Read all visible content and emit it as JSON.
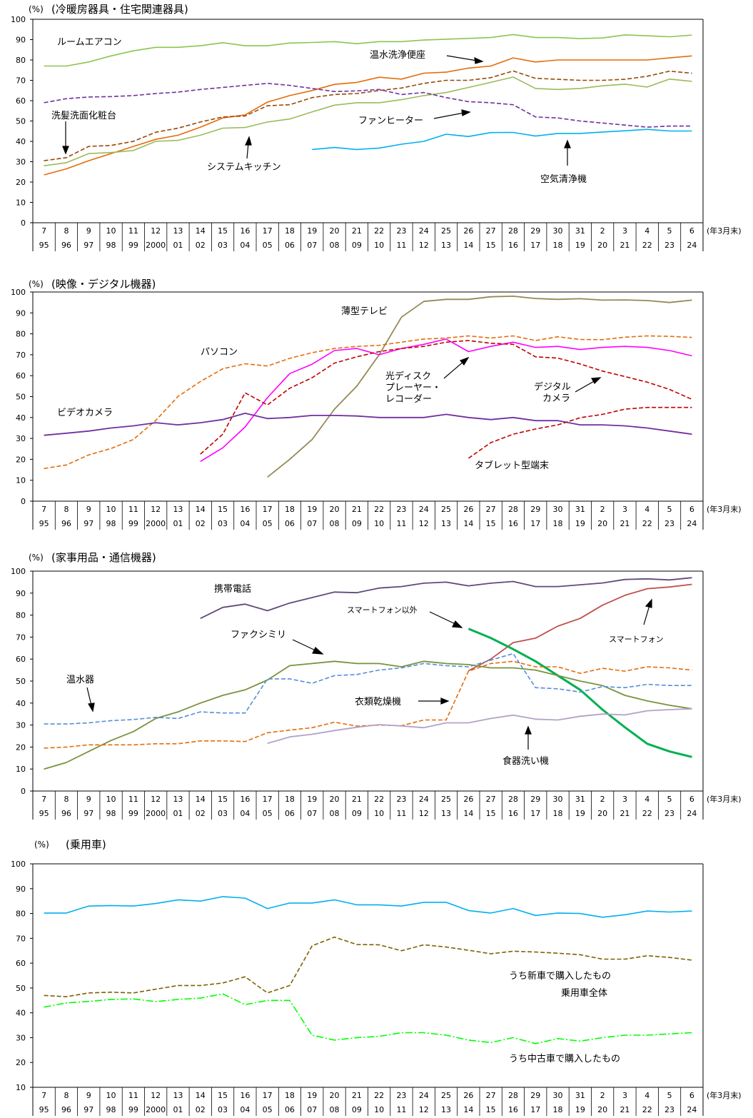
{
  "colors": {
    "axis": "#000000",
    "grid": "#000000"
  },
  "chart_data": [
    {
      "type": "line",
      "title": "(冷暖房器具・住宅関連器具)",
      "unit_label": "(%)",
      "x_unit": "(年3月末)",
      "ylim": [
        0,
        100
      ],
      "yticks": [
        0,
        10,
        20,
        30,
        40,
        50,
        60,
        70,
        80,
        90,
        100
      ],
      "x_top": [
        "7",
        "8",
        "9",
        "10",
        "11",
        "12",
        "13",
        "14",
        "15",
        "16",
        "17",
        "18",
        "19",
        "20",
        "21",
        "22",
        "23",
        "24",
        "25",
        "26",
        "27",
        "28",
        "29",
        "30",
        "31",
        "2",
        "3",
        "4",
        "5",
        "6"
      ],
      "x_bottom": [
        "95",
        "96",
        "97",
        "98",
        "99",
        "2000",
        "01",
        "02",
        "03",
        "04",
        "05",
        "06",
        "07",
        "08",
        "09",
        "10",
        "11",
        "12",
        "13",
        "14",
        "15",
        "16",
        "17",
        "18",
        "19",
        "20",
        "21",
        "22",
        "23",
        "24"
      ],
      "grid": false,
      "series": [
        {
          "name": "ルームエアコン",
          "color": "#8dc44f",
          "dash": "solid",
          "width": 1.6,
          "start": 0,
          "values": [
            77,
            77,
            79,
            82,
            84.5,
            86.2,
            86.2,
            87,
            88.5,
            87,
            87,
            88.3,
            88.6,
            89,
            88,
            89,
            89,
            89.8,
            90.2,
            90.6,
            91,
            92.5,
            91,
            91,
            90.5,
            90.8,
            92.3,
            91.9,
            91.4,
            92.2
          ]
        },
        {
          "name": "温水洗浄便座",
          "color": "#e46c0a",
          "dash": "solid",
          "width": 1.6,
          "start": 0,
          "values": [
            23.5,
            26.5,
            30.5,
            34,
            37.5,
            41,
            43,
            47,
            51.5,
            53,
            59.3,
            62.5,
            65,
            68,
            69,
            71.5,
            70.6,
            73.5,
            74,
            76,
            77,
            81,
            79,
            80,
            80,
            80,
            80,
            80,
            81,
            82
          ]
        },
        {
          "name": "洗髪洗面化粧台",
          "color": "#984807",
          "dash": "dashed",
          "width": 1.6,
          "start": 0,
          "values": [
            30.5,
            32,
            37.5,
            38,
            40,
            44.5,
            46.5,
            49.5,
            52,
            52.5,
            57.5,
            58,
            61.5,
            63,
            63.5,
            65,
            66.2,
            68.5,
            70,
            70,
            71.3,
            74.6,
            71,
            70.5,
            70,
            70,
            70.5,
            72,
            74.5,
            73.5
          ]
        },
        {
          "name": "システムキッチン",
          "color": "#9bbb59",
          "dash": "solid",
          "width": 1.6,
          "start": 0,
          "values": [
            28,
            29.5,
            34,
            34.5,
            35.5,
            40,
            40.5,
            43,
            46.5,
            46.8,
            49.5,
            51,
            54.5,
            57.8,
            59,
            59,
            60.5,
            62.5,
            64,
            66.5,
            69,
            71.6,
            66,
            65.5,
            66,
            67.3,
            68.1,
            66.7,
            70.6,
            69.5
          ]
        },
        {
          "name": "ファンヒーター",
          "color": "#7030a0",
          "dash": "dashed",
          "width": 1.6,
          "start": 0,
          "values": [
            59,
            61,
            61.8,
            62,
            62.5,
            63.5,
            64.2,
            65.5,
            66.5,
            67.5,
            68.5,
            67.5,
            66,
            64.5,
            64.8,
            65.5,
            63,
            64,
            61.5,
            59.5,
            59,
            58,
            52,
            51.5,
            50,
            49,
            48,
            47,
            47.5,
            47.5
          ]
        },
        {
          "name": "空気清浄機",
          "color": "#00b0f0",
          "dash": "solid",
          "width": 1.6,
          "start": 12,
          "values": [
            36,
            37,
            36,
            36.7,
            38.6,
            40,
            43.5,
            42.4,
            44.3,
            44.4,
            42.6,
            43.9,
            43.9,
            44.6,
            45.2,
            45.9,
            45.1,
            45.1
          ]
        }
      ],
      "annotations": [
        {
          "text": "ルームエアコン"
        },
        {
          "text": "温水洗浄便座"
        },
        {
          "text": "洗髪洗面化粧台"
        },
        {
          "text": "ファンヒーター"
        },
        {
          "text": "システムキッチン"
        },
        {
          "text": "空気清浄機"
        }
      ]
    },
    {
      "type": "line",
      "title": "(映像・デジタル機器)",
      "unit_label": "(%)",
      "x_unit": "(年3月末)",
      "ylim": [
        0,
        100
      ],
      "yticks": [
        0,
        10,
        20,
        30,
        40,
        50,
        60,
        70,
        80,
        90,
        100
      ],
      "x_top": [
        "7",
        "8",
        "9",
        "10",
        "11",
        "12",
        "13",
        "14",
        "15",
        "16",
        "17",
        "18",
        "19",
        "20",
        "21",
        "22",
        "23",
        "24",
        "25",
        "26",
        "27",
        "28",
        "29",
        "30",
        "31",
        "2",
        "3",
        "4",
        "5",
        "6"
      ],
      "x_bottom": [
        "95",
        "96",
        "97",
        "98",
        "99",
        "2000",
        "01",
        "02",
        "03",
        "04",
        "05",
        "06",
        "07",
        "08",
        "09",
        "10",
        "11",
        "12",
        "13",
        "14",
        "15",
        "16",
        "17",
        "18",
        "19",
        "20",
        "21",
        "22",
        "23",
        "24"
      ],
      "grid": false,
      "series": [
        {
          "name": "薄型テレビ",
          "color": "#948a54",
          "dash": "solid",
          "width": 1.8,
          "start": 10,
          "values": [
            11.5,
            20,
            29.5,
            44,
            55,
            70,
            88,
            95.5,
            96.5,
            96.5,
            97.7,
            98,
            96.9,
            96.5,
            96.8,
            96.1,
            96.2,
            95.9,
            95,
            96.1
          ]
        },
        {
          "name": "パソコン",
          "color": "#e46c0a",
          "dash": "dashed",
          "width": 1.6,
          "start": 0,
          "values": [
            15.6,
            17.3,
            22.1,
            25.2,
            29.5,
            38.6,
            50.1,
            57.2,
            63.3,
            65.7,
            64.6,
            68.3,
            71,
            73,
            74,
            74.5,
            76,
            77.5,
            78,
            79,
            78,
            79,
            76.8,
            78.6,
            77.3,
            77.2,
            78.4,
            79,
            78.8,
            78.3
          ]
        },
        {
          "name": "光ディスクプレーヤー・レコーダー",
          "color": "#ff00ff",
          "dash": "solid",
          "width": 1.6,
          "start": 7,
          "values": [
            19,
            25.5,
            35.5,
            49.5,
            61,
            65.5,
            72,
            73,
            70,
            73,
            75,
            77.5,
            71.5,
            74,
            76,
            73.5,
            74,
            72.5,
            73.5,
            74,
            73.5,
            72,
            69.5
          ]
        },
        {
          "name": "デジタルカメラ",
          "color": "#c00000",
          "dash": "dashed",
          "width": 1.6,
          "start": 7,
          "values": [
            22.5,
            32,
            51.8,
            46,
            54,
            59,
            66,
            69,
            71.5,
            73,
            74,
            76,
            76.8,
            75.5,
            75,
            69,
            68.4,
            65.6,
            62.2,
            59.6,
            56.9,
            53.4,
            48.7
          ]
        },
        {
          "name": "ビデオカメラ",
          "color": "#7030a0",
          "dash": "solid",
          "width": 1.8,
          "start": 0,
          "values": [
            31.5,
            32.5,
            33.5,
            35,
            36,
            37.5,
            36.5,
            37.5,
            39,
            42,
            39.5,
            40,
            41,
            41,
            40.7,
            40,
            40,
            40,
            41.5,
            40,
            39,
            40,
            38.5,
            38.5,
            36.5,
            36.5,
            36,
            35,
            33.5,
            32
          ]
        },
        {
          "name": "タブレット型端末",
          "color": "#c00000",
          "dash": "dashed",
          "width": 1.6,
          "start": 19,
          "values": [
            20.5,
            28,
            32,
            34.5,
            36.5,
            39.9,
            41.5,
            44,
            44.8,
            44.8,
            44.8
          ]
        }
      ],
      "annotations": [
        {
          "text": "薄型テレビ"
        },
        {
          "text": "パソコン"
        },
        {
          "text": "光ディスク"
        },
        {
          "text": "プレーヤー・"
        },
        {
          "text": "レコーダー"
        },
        {
          "text": "デジタル"
        },
        {
          "text": "カメラ"
        },
        {
          "text": "ビデオカメラ"
        },
        {
          "text": "タブレット型端末"
        }
      ]
    },
    {
      "type": "line",
      "title": "(家事用品・通信機器)",
      "unit_label": "(%)",
      "x_unit": "(年3月末)",
      "ylim": [
        0,
        100
      ],
      "yticks": [
        0,
        10,
        20,
        30,
        40,
        50,
        60,
        70,
        80,
        90,
        100
      ],
      "x_top": [
        "7",
        "8",
        "9",
        "10",
        "11",
        "12",
        "13",
        "14",
        "15",
        "16",
        "17",
        "18",
        "19",
        "20",
        "21",
        "22",
        "23",
        "24",
        "25",
        "26",
        "27",
        "28",
        "29",
        "30",
        "31",
        "2",
        "3",
        "4",
        "5",
        "6"
      ],
      "x_bottom": [
        "95",
        "96",
        "97",
        "98",
        "99",
        "2000",
        "01",
        "02",
        "03",
        "04",
        "05",
        "06",
        "07",
        "08",
        "09",
        "10",
        "11",
        "12",
        "13",
        "14",
        "15",
        "16",
        "17",
        "18",
        "19",
        "20",
        "21",
        "22",
        "23",
        "24"
      ],
      "grid": false,
      "series": [
        {
          "name": "携帯電話",
          "color": "#604a7b",
          "dash": "solid",
          "width": 1.8,
          "start": 7,
          "values": [
            78.5,
            83.5,
            85,
            82,
            85.5,
            88,
            90.5,
            90.2,
            92.3,
            93,
            94.5,
            95,
            93.3,
            94.5,
            95.3,
            93,
            93,
            93.8,
            94.6,
            96.2,
            96.5,
            96,
            97
          ]
        },
        {
          "name": "スマートフォン",
          "color": "#c0504d",
          "dash": "solid",
          "width": 1.8,
          "start": 19,
          "values": [
            54.7,
            60,
            67.5,
            69.5,
            75,
            78.5,
            84.5,
            89,
            92,
            92.8,
            94
          ]
        },
        {
          "name": "スマートフォン以外",
          "color": "#00b050",
          "dash": "solid",
          "width": 3,
          "start": 19,
          "values": [
            73.8,
            69.6,
            64.5,
            59,
            52.5,
            46,
            37,
            29,
            21.5,
            18,
            15.5
          ]
        },
        {
          "name": "ファクシミリ",
          "color": "#77933c",
          "dash": "solid",
          "width": 1.8,
          "start": 0,
          "values": [
            10,
            13,
            18,
            23,
            27,
            33,
            36,
            40,
            43.5,
            46,
            50.5,
            57,
            58,
            59,
            58,
            58,
            56.5,
            59,
            58,
            57.5,
            56,
            56,
            55,
            52.5,
            50,
            48,
            43.5,
            41,
            39,
            37.4
          ]
        },
        {
          "name": "温水器",
          "color": "#558ed5",
          "dash": "dashed",
          "width": 1.6,
          "start": 0,
          "values": [
            30.5,
            30.5,
            31,
            32,
            32.5,
            33.5,
            33,
            36,
            35.5,
            35.5,
            51,
            51,
            49,
            52.5,
            53,
            55,
            56,
            58,
            57,
            56.5,
            59.5,
            62.5,
            47,
            46.5,
            45,
            47.5,
            47,
            48.5,
            48,
            48
          ]
        },
        {
          "name": "衣類乾燥機",
          "color": "#e46c0a",
          "dash": "dashed",
          "width": 1.6,
          "start": 0,
          "values": [
            19.5,
            20,
            21,
            21,
            21,
            21.5,
            21.5,
            22.8,
            22.8,
            22.5,
            26.5,
            27.7,
            28.8,
            31.3,
            29.5,
            30,
            29.7,
            32.3,
            32.3,
            54.5,
            58,
            59,
            56.5,
            56.5,
            53.5,
            55.8,
            54.5,
            56.5,
            56,
            55
          ]
        },
        {
          "name": "食器洗い機",
          "color": "#b3a2c7",
          "dash": "solid",
          "width": 1.8,
          "start": 10,
          "values": [
            21.7,
            24.6,
            25.8,
            27.5,
            29,
            30.2,
            29.6,
            28.8,
            31,
            31,
            33,
            34.5,
            32.7,
            32.3,
            34,
            35,
            34.6,
            36.5,
            37,
            37.4
          ]
        }
      ],
      "annotations": [
        {
          "text": "携帯電話"
        },
        {
          "text": "スマートフォン以外"
        },
        {
          "text": "スマートフォン"
        },
        {
          "text": "ファクシミリ"
        },
        {
          "text": "温水器"
        },
        {
          "text": "衣類乾燥機"
        },
        {
          "text": "食器洗い機"
        }
      ]
    },
    {
      "type": "line",
      "title": "(乗用車)",
      "unit_label": "(%)",
      "x_unit": "(年3月末)",
      "ylim": [
        10,
        100
      ],
      "yticks": [
        10,
        20,
        30,
        40,
        50,
        60,
        70,
        80,
        90,
        100
      ],
      "x_top": [
        "7",
        "8",
        "9",
        "10",
        "11",
        "12",
        "13",
        "14",
        "15",
        "16",
        "17",
        "18",
        "19",
        "20",
        "21",
        "22",
        "23",
        "24",
        "25",
        "26",
        "27",
        "28",
        "29",
        "30",
        "31",
        "2",
        "3",
        "4",
        "5",
        "6"
      ],
      "x_bottom": [
        "95",
        "96",
        "97",
        "98",
        "99",
        "2000",
        "01",
        "02",
        "03",
        "04",
        "05",
        "06",
        "07",
        "08",
        "09",
        "10",
        "11",
        "12",
        "13",
        "14",
        "15",
        "16",
        "17",
        "18",
        "19",
        "20",
        "21",
        "22",
        "23",
        "24"
      ],
      "grid": false,
      "series": [
        {
          "name": "乗用車全体",
          "color": "#00b0f0",
          "dash": "solid",
          "width": 1.6,
          "start": 0,
          "values": [
            80.2,
            80.2,
            83,
            83.2,
            83,
            84,
            85.5,
            85,
            86.8,
            86.2,
            82,
            84.2,
            84.2,
            85.5,
            83.5,
            83.5,
            83,
            84.5,
            84.5,
            81.2,
            80.2,
            82,
            79.2,
            80.2,
            80,
            78.5,
            79.5,
            81,
            80.6,
            81
          ]
        },
        {
          "name": "うち新車で購入したもの",
          "color": "#7f6000",
          "dash": "dashed",
          "width": 1.6,
          "start": 0,
          "values": [
            47,
            46.5,
            48,
            48.3,
            48,
            49.5,
            51,
            51,
            52,
            54.5,
            48,
            51,
            67,
            70.5,
            67.5,
            67.4,
            65,
            67.4,
            66.5,
            65.2,
            63.8,
            64.8,
            64.5,
            64,
            63.4,
            61.6,
            61.6,
            63,
            62.3,
            61.2
          ]
        },
        {
          "name": "うち中古車で購入したもの",
          "color": "#00ff00",
          "dash": "dashdot",
          "width": 1.6,
          "start": 0,
          "values": [
            42.3,
            44,
            44.6,
            45.4,
            45.6,
            44.5,
            45.4,
            45.9,
            47.6,
            43.3,
            45,
            45,
            31,
            29,
            30,
            30.5,
            32,
            32,
            31,
            29,
            28,
            30,
            27.6,
            29.6,
            28.6,
            30,
            31,
            31,
            31.5,
            32
          ]
        }
      ],
      "annotations": [
        {
          "text": "乗用車全体"
        },
        {
          "text": "うち新車で購入したもの"
        },
        {
          "text": "うち中古車で購入したもの"
        }
      ]
    }
  ]
}
